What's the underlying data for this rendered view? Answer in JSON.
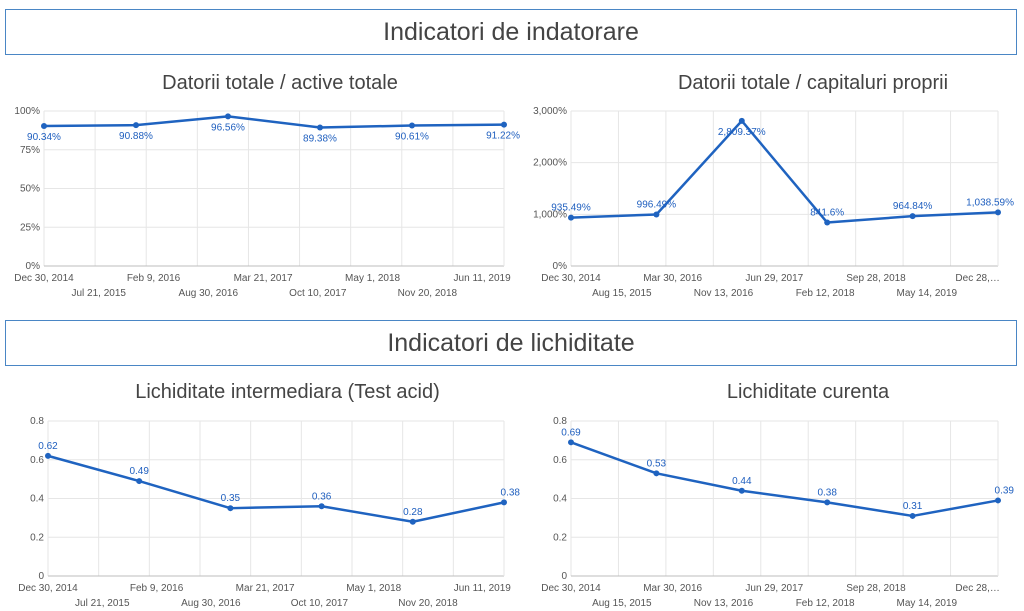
{
  "sections": [
    {
      "title": "Indicatori de indatorare"
    },
    {
      "title": "Indicatori de lichiditate"
    }
  ],
  "colors": {
    "line": "#1f63c0",
    "grid": "#e6e6e6",
    "border": "#4a86c5"
  },
  "chart_data": [
    {
      "type": "line",
      "title": "Datorii totale / active totale",
      "ylim": [
        0,
        100
      ],
      "yticks": [
        "0%",
        "25%",
        "50%",
        "75%",
        "100%"
      ],
      "yticks_values": [
        0,
        25,
        50,
        75,
        100
      ],
      "xticks_top": [
        "Dec 30, 2014",
        "Feb 9, 2016",
        "Mar 21, 2017",
        "May 1, 2018",
        "Jun 11, 2019"
      ],
      "xticks_bottom": [
        "Jul 21, 2015",
        "Aug 30, 2016",
        "Oct 10, 2017",
        "Nov 20, 2018"
      ],
      "values": [
        90.34,
        90.88,
        96.56,
        89.38,
        90.61,
        91.22
      ],
      "labels": [
        "90.34%",
        "90.88%",
        "96.56%",
        "89.38%",
        "90.61%",
        "91.22%"
      ],
      "label_pos": [
        "below",
        "below",
        "below",
        "below",
        "below",
        "below"
      ]
    },
    {
      "type": "line",
      "title": "Datorii totale / capitaluri proprii",
      "ylim": [
        0,
        3000
      ],
      "yticks": [
        "0%",
        "1,000%",
        "2,000%",
        "3,000%"
      ],
      "yticks_values": [
        0,
        1000,
        2000,
        3000
      ],
      "xticks_top": [
        "Dec 30, 2014",
        "Mar 30, 2016",
        "Jun 29, 2017",
        "Sep 28, 2018",
        "Dec 28,…"
      ],
      "xticks_bottom": [
        "Aug 15, 2015",
        "Nov 13, 2016",
        "Feb 12, 2018",
        "May 14, 2019"
      ],
      "values": [
        935.49,
        996.49,
        2809.37,
        841.6,
        964.84,
        1038.59
      ],
      "labels": [
        "935.49%",
        "996.49%",
        "2,809.37%",
        "841.6%",
        "964.84%",
        "1,038.59%"
      ],
      "label_pos": [
        "above",
        "above",
        "below",
        "above",
        "above",
        "above"
      ]
    },
    {
      "type": "line",
      "title": "Lichiditate intermediara (Test acid)",
      "ylim": [
        0,
        0.8
      ],
      "yticks": [
        "0",
        "0.2",
        "0.4",
        "0.6",
        "0.8"
      ],
      "yticks_values": [
        0,
        0.2,
        0.4,
        0.6,
        0.8
      ],
      "xticks_top": [
        "Dec 30, 2014",
        "Feb 9, 2016",
        "Mar 21, 2017",
        "May 1, 2018",
        "Jun 11, 2019"
      ],
      "xticks_bottom": [
        "Jul 21, 2015",
        "Aug 30, 2016",
        "Oct 10, 2017",
        "Nov 20, 2018"
      ],
      "values": [
        0.62,
        0.49,
        0.35,
        0.36,
        0.28,
        0.38
      ],
      "labels": [
        "0.62",
        "0.49",
        "0.35",
        "0.36",
        "0.28",
        "0.38"
      ],
      "label_pos": [
        "above",
        "above",
        "above",
        "above",
        "above",
        "above"
      ]
    },
    {
      "type": "line",
      "title": "Lichiditate curenta",
      "ylim": [
        0,
        0.8
      ],
      "yticks": [
        "0",
        "0.2",
        "0.4",
        "0.6",
        "0.8"
      ],
      "yticks_values": [
        0,
        0.2,
        0.4,
        0.6,
        0.8
      ],
      "xticks_top": [
        "Dec 30, 2014",
        "Mar 30, 2016",
        "Jun 29, 2017",
        "Sep 28, 2018",
        "Dec 28,…"
      ],
      "xticks_bottom": [
        "Aug 15, 2015",
        "Nov 13, 2016",
        "Feb 12, 2018",
        "May 14, 2019"
      ],
      "values": [
        0.69,
        0.53,
        0.44,
        0.38,
        0.31,
        0.39
      ],
      "labels": [
        "0.69",
        "0.53",
        "0.44",
        "0.38",
        "0.31",
        "0.39"
      ],
      "label_pos": [
        "above",
        "above",
        "above",
        "above",
        "above",
        "above"
      ]
    }
  ]
}
